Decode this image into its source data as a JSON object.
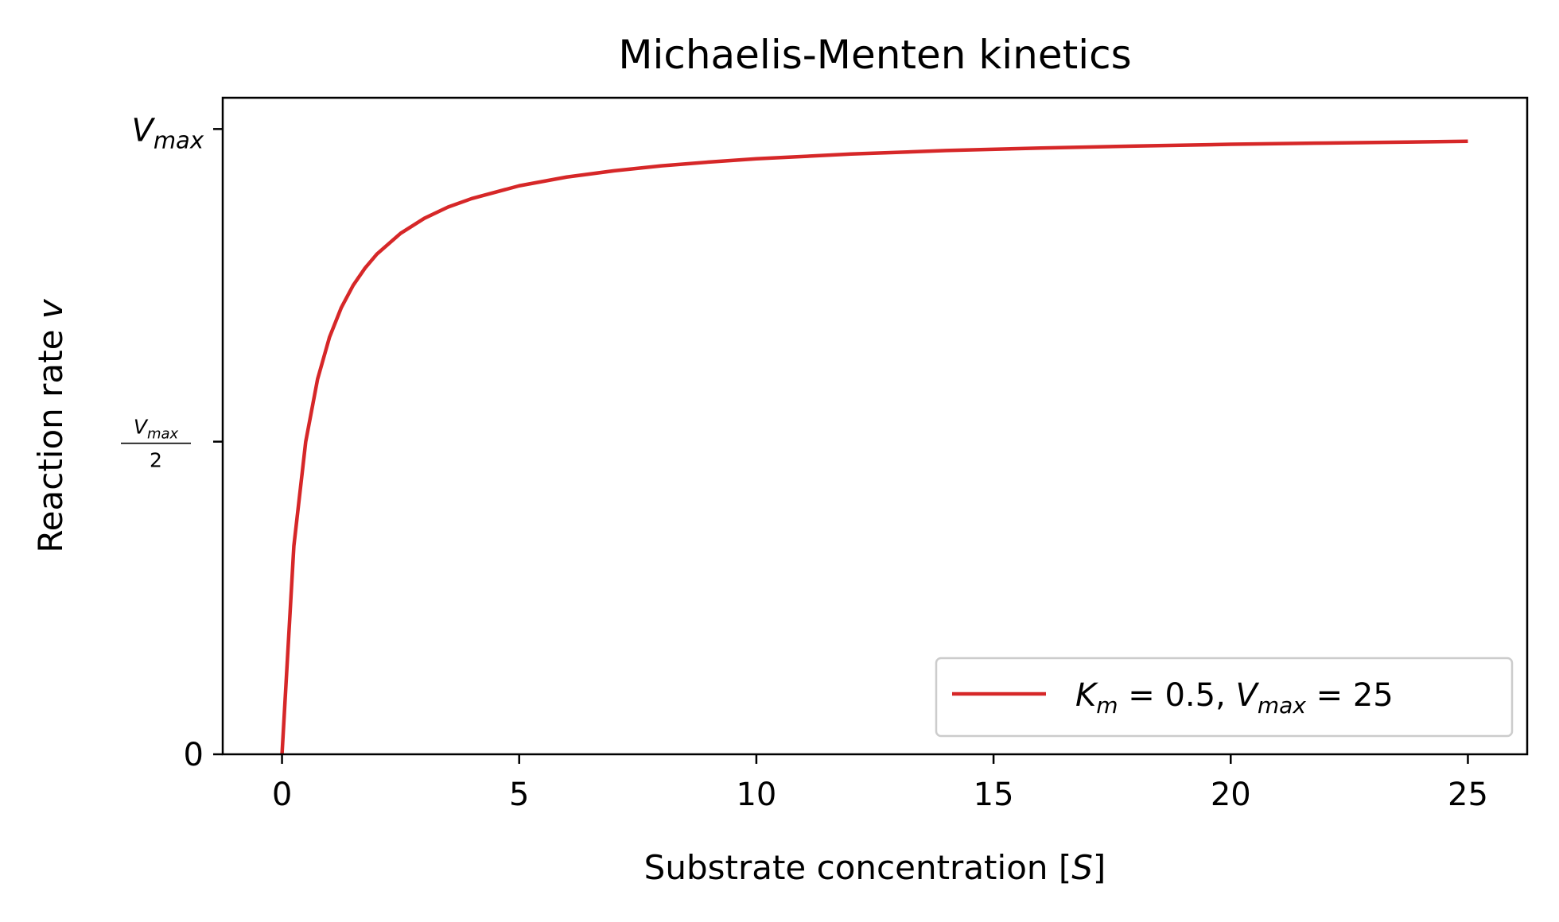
{
  "chart_data": {
    "type": "line",
    "title": "Michaelis-Menten kinetics",
    "xlabel": "Substrate concentration [S]",
    "ylabel": "Reaction rate v",
    "xlim": [
      -1.25,
      26.25
    ],
    "ylim": [
      0,
      26.25
    ],
    "x_ticks": [
      0,
      5,
      10,
      15,
      20,
      25
    ],
    "x_tick_labels": [
      "0",
      "5",
      "10",
      "15",
      "20",
      "25"
    ],
    "y_ticks": [
      {
        "value": 0,
        "label": "0"
      },
      {
        "value": 12.5,
        "label": "Vmax/2"
      },
      {
        "value": 25,
        "label": "Vmax"
      }
    ],
    "grid": false,
    "legend_position": "lower-right",
    "series": [
      {
        "name": "K_m = 0.5, V_max = 25",
        "color": "#d62728",
        "x": [
          0,
          0.25,
          0.5,
          0.75,
          1,
          1.25,
          1.5,
          1.75,
          2,
          2.5,
          3,
          3.5,
          4,
          5,
          6,
          7,
          8,
          9,
          10,
          12,
          14,
          16,
          18,
          20,
          22,
          25
        ],
        "y": [
          0,
          8.33,
          12.5,
          15.0,
          16.67,
          17.86,
          18.75,
          19.44,
          20.0,
          20.83,
          21.43,
          21.88,
          22.22,
          22.73,
          23.08,
          23.33,
          23.53,
          23.68,
          23.81,
          24.0,
          24.14,
          24.24,
          24.32,
          24.39,
          24.44,
          24.51
        ]
      }
    ]
  }
}
